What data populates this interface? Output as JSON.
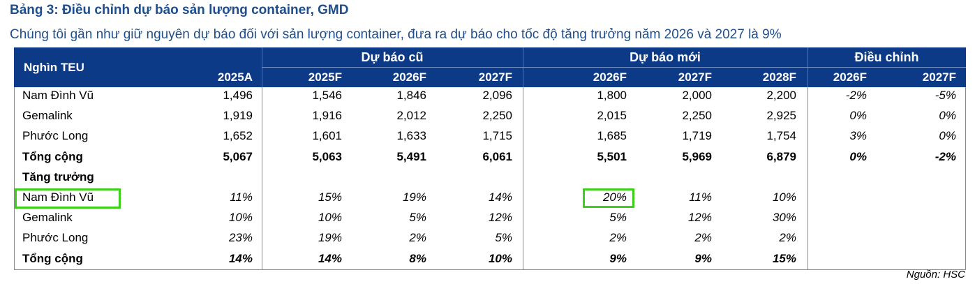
{
  "title": "Bảng 3: Điều chỉnh dự báo sản lượng container, GMD",
  "subtitle": "Chúng tôi gần như giữ nguyên dự báo đối với sản lượng container, đưa ra dự báo cho tốc độ tăng trưởng năm 2026 và 2027 là 9%",
  "header": {
    "unit_label": "Nghìn TEU",
    "groups": [
      "Dự báo cũ",
      "Dự báo mới",
      "Điều chỉnh"
    ],
    "columns": [
      "2025A",
      "2025F",
      "2026F",
      "2027F",
      "2026F",
      "2027F",
      "2028F",
      "2026F",
      "2027F"
    ]
  },
  "volume_rows": [
    {
      "label": "Nam Đình Vũ",
      "values": [
        "1,496",
        "1,546",
        "1,846",
        "2,096",
        "1,800",
        "2,000",
        "2,200",
        "-2%",
        "-5%"
      ]
    },
    {
      "label": "Gemalink",
      "values": [
        "1,919",
        "1,916",
        "2,012",
        "2,250",
        "2,015",
        "2,250",
        "2,925",
        "0%",
        "0%"
      ]
    },
    {
      "label": "Phước Long",
      "values": [
        "1,652",
        "1,601",
        "1,633",
        "1,715",
        "1,685",
        "1,719",
        "1,754",
        "3%",
        "0%"
      ]
    },
    {
      "label": "Tổng cộng",
      "values": [
        "5,067",
        "5,063",
        "5,491",
        "6,061",
        "5,501",
        "5,969",
        "6,879",
        "0%",
        "-2%"
      ]
    }
  ],
  "growth_section_label": "Tăng trưởng",
  "growth_rows": [
    {
      "label": "Nam Đình Vũ",
      "values": [
        "11%",
        "15%",
        "19%",
        "14%",
        "20%",
        "11%",
        "10%"
      ]
    },
    {
      "label": "Gemalink",
      "values": [
        "10%",
        "10%",
        "5%",
        "12%",
        "5%",
        "12%",
        "30%"
      ]
    },
    {
      "label": "Phước Long",
      "values": [
        "23%",
        "19%",
        "2%",
        "5%",
        "2%",
        "2%",
        "2%"
      ]
    },
    {
      "label": "Tổng cộng",
      "values": [
        "14%",
        "14%",
        "8%",
        "10%",
        "9%",
        "9%",
        "15%"
      ]
    }
  ],
  "source": "Nguồn: HSC",
  "colors": {
    "header_bg": "#0d3a86",
    "title": "#1f4e8c",
    "highlight": "#3ccf1c"
  }
}
